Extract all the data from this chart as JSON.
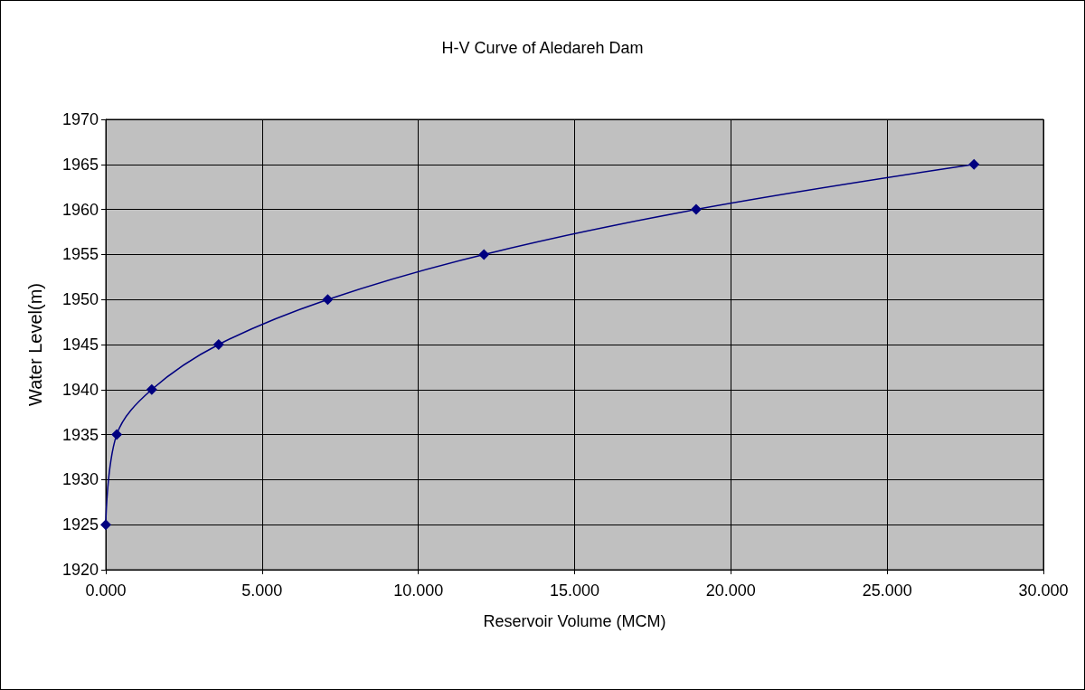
{
  "chart_data": {
    "type": "line",
    "title": "H-V Curve of Aledareh Dam",
    "xlabel": "Reservoir Volume (MCM)",
    "ylabel": "Water Level(m)",
    "x": [
      0,
      0.35,
      1.47,
      3.61,
      7.1,
      12.1,
      18.89,
      27.78
    ],
    "series": [
      {
        "color": "#000080",
        "values": [
          1925,
          1935,
          1940,
          1945,
          1950,
          1955,
          1960,
          1965
        ]
      }
    ],
    "xlim": [
      0,
      30
    ],
    "xticks": [
      {
        "value": 0,
        "label": "0.000"
      },
      {
        "value": 5,
        "label": "5.000"
      },
      {
        "value": 10,
        "label": "10.000"
      },
      {
        "value": 15,
        "label": "15.000"
      },
      {
        "value": 20,
        "label": "20.000"
      },
      {
        "value": 25,
        "label": "25.000"
      },
      {
        "value": 30,
        "label": "30.000"
      }
    ],
    "ylim": [
      1920,
      1970
    ],
    "yticks": [
      1920,
      1925,
      1930,
      1935,
      1940,
      1945,
      1950,
      1955,
      1960,
      1965,
      1970
    ],
    "grid": true,
    "marker": "diamond",
    "line_style": "solid"
  }
}
